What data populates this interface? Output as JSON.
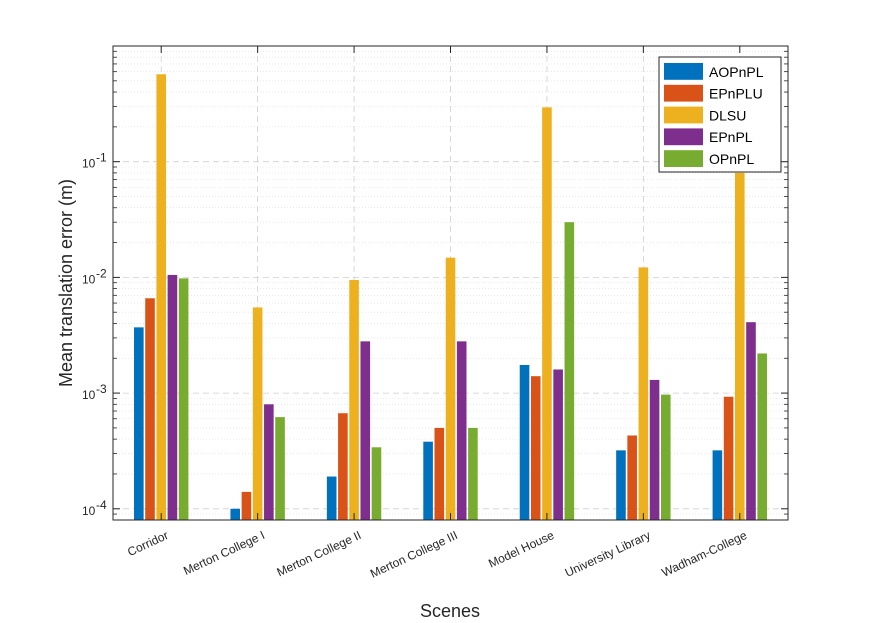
{
  "chart_data": {
    "type": "bar",
    "yscale": "log",
    "title": "",
    "xlabel": "Scenes",
    "ylabel": "Mean translation error (m)",
    "ylim": [
      8e-05,
      1.0
    ],
    "grid": true,
    "legend_position": "top-right",
    "categories": [
      "Corridor",
      "Merton College I",
      "Merton College II",
      "Merton College III",
      "Model House",
      "University Library",
      "Wadham-College"
    ],
    "ytick_labels": [
      {
        "base": "10",
        "exp": "-4",
        "value": 0.0001
      },
      {
        "base": "10",
        "exp": "-3",
        "value": 0.001
      },
      {
        "base": "10",
        "exp": "-2",
        "value": 0.01
      },
      {
        "base": "10",
        "exp": "-1",
        "value": 0.1
      }
    ],
    "series": [
      {
        "name": "AOPnPL",
        "color": "#0072BD",
        "values": [
          0.0037,
          0.0001,
          0.00019,
          0.00038,
          0.00175,
          0.00032,
          0.00032
        ]
      },
      {
        "name": "EPnPLU",
        "color": "#D95319",
        "values": [
          0.0066,
          0.00014,
          0.00067,
          0.0005,
          0.0014,
          0.00043,
          0.00093
        ]
      },
      {
        "name": "DLSU",
        "color": "#EDB120",
        "values": [
          0.57,
          0.0055,
          0.0095,
          0.0148,
          0.295,
          0.0122,
          0.08
        ]
      },
      {
        "name": "EPnPL",
        "color": "#7E2F8E",
        "values": [
          0.0105,
          0.0008,
          0.0028,
          0.0028,
          0.0016,
          0.0013,
          0.0041
        ]
      },
      {
        "name": "OPnPL",
        "color": "#77AC30",
        "values": [
          0.0098,
          0.00062,
          0.00034,
          0.0005,
          0.03,
          0.00097,
          0.0022
        ]
      }
    ]
  }
}
